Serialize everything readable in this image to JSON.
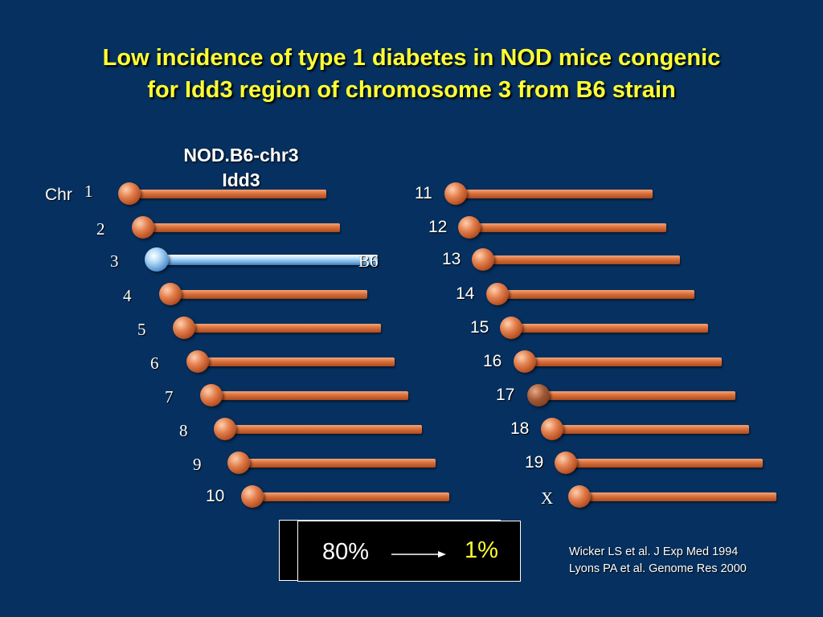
{
  "title": {
    "line1": "Low incidence of type 1 diabetes in NOD mice congenic",
    "line2": "for Idd3 region of chromosome 3 from B6 strain"
  },
  "strain_label": {
    "line1": "NOD.B6-chr3",
    "line2": "Idd3"
  },
  "chr_word": "Chr",
  "chromosomes_left": [
    {
      "label": "1",
      "font": "serif",
      "allele": "NOD"
    },
    {
      "label": "2",
      "font": "serif",
      "allele": "NOD"
    },
    {
      "label": "3",
      "font": "serif",
      "allele": "B6"
    },
    {
      "label": "4",
      "font": "serif",
      "allele": "NOD"
    },
    {
      "label": "5",
      "font": "serif",
      "allele": "NOD"
    },
    {
      "label": "6",
      "font": "serif",
      "allele": "NOD"
    },
    {
      "label": "7",
      "font": "serif",
      "allele": "NOD"
    },
    {
      "label": "8",
      "font": "serif",
      "allele": "NOD"
    },
    {
      "label": "9",
      "font": "serif",
      "allele": "NOD"
    },
    {
      "label": "10",
      "font": "sans",
      "allele": "NOD"
    }
  ],
  "chromosomes_right": [
    {
      "label": "11",
      "font": "sans",
      "allele": "NOD"
    },
    {
      "label": "12",
      "font": "sans",
      "allele": "NOD"
    },
    {
      "label": "13",
      "font": "sans",
      "allele": "NOD"
    },
    {
      "label": "14",
      "font": "sans",
      "allele": "NOD"
    },
    {
      "label": "15",
      "font": "sans",
      "allele": "NOD"
    },
    {
      "label": "16",
      "font": "sans",
      "allele": "NOD"
    },
    {
      "label": "17",
      "font": "sans",
      "allele": "NOD"
    },
    {
      "label": "18",
      "font": "sans",
      "allele": "NOD"
    },
    {
      "label": "19",
      "font": "sans",
      "allele": "NOD"
    },
    {
      "label": "X",
      "font": "serif",
      "allele": "NOD"
    }
  ],
  "b6_label": "B6",
  "incidence": {
    "from": "80%",
    "to": "1%"
  },
  "references": [
    "Wicker LS et al. J Exp Med 1994",
    "Lyons PA et al. Genome Res 2000"
  ],
  "colors": {
    "background": "#05305f",
    "title": "#ffff33",
    "nod_chromosome": "#d9703c",
    "b6_chromosome": "#6da9dd",
    "highlight_percent": "#ffff33"
  }
}
